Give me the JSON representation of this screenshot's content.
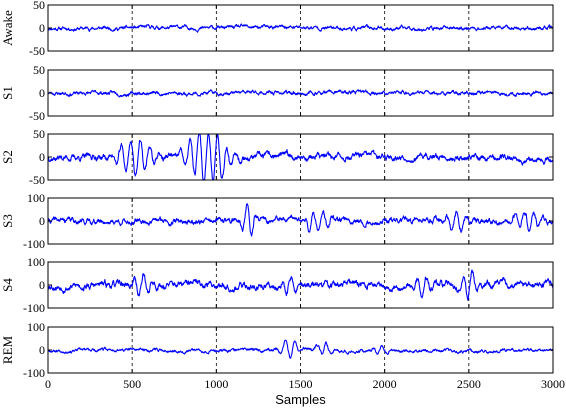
{
  "chart_data": {
    "type": "line",
    "xlabel": "Samples",
    "xlim": [
      0,
      3000
    ],
    "xticks": [
      0,
      500,
      1000,
      1500,
      2000,
      2500,
      3000
    ],
    "line_color": "#0000ff",
    "grid": "vertical dashed at x ticks",
    "panels": [
      {
        "name": "Awake",
        "ylim": [
          -50,
          50
        ],
        "yticks": [
          -50,
          0,
          50
        ],
        "amp": 6,
        "seed": 11,
        "events": []
      },
      {
        "name": "S1",
        "ylim": [
          -50,
          50
        ],
        "yticks": [
          -50,
          0,
          50
        ],
        "amp": 6,
        "seed": 23,
        "events": []
      },
      {
        "name": "S2",
        "ylim": [
          -50,
          50
        ],
        "yticks": [
          -50,
          0,
          50
        ],
        "amp": 10,
        "seed": 37,
        "events": [
          [
            520,
            80,
            38
          ],
          [
            900,
            70,
            42
          ],
          [
            1000,
            70,
            40
          ]
        ]
      },
      {
        "name": "S3",
        "ylim": [
          -100,
          100
        ],
        "yticks": [
          -100,
          0,
          100
        ],
        "amp": 18,
        "seed": 41,
        "events": [
          [
            1190,
            30,
            70
          ],
          [
            1600,
            60,
            45
          ],
          [
            2420,
            60,
            40
          ],
          [
            2850,
            60,
            45
          ]
        ]
      },
      {
        "name": "S4",
        "ylim": [
          -100,
          100
        ],
        "yticks": [
          -100,
          0,
          100
        ],
        "amp": 22,
        "seed": 53,
        "events": [
          [
            560,
            40,
            45
          ],
          [
            1440,
            40,
            40
          ],
          [
            2230,
            40,
            40
          ],
          [
            2500,
            40,
            55
          ]
        ]
      },
      {
        "name": "REM",
        "ylim": [
          -100,
          100
        ],
        "yticks": [
          -100,
          0,
          100
        ],
        "amp": 10,
        "seed": 67,
        "events": [
          [
            1430,
            40,
            40
          ],
          [
            1640,
            40,
            25
          ],
          [
            1980,
            40,
            18
          ]
        ]
      }
    ]
  }
}
